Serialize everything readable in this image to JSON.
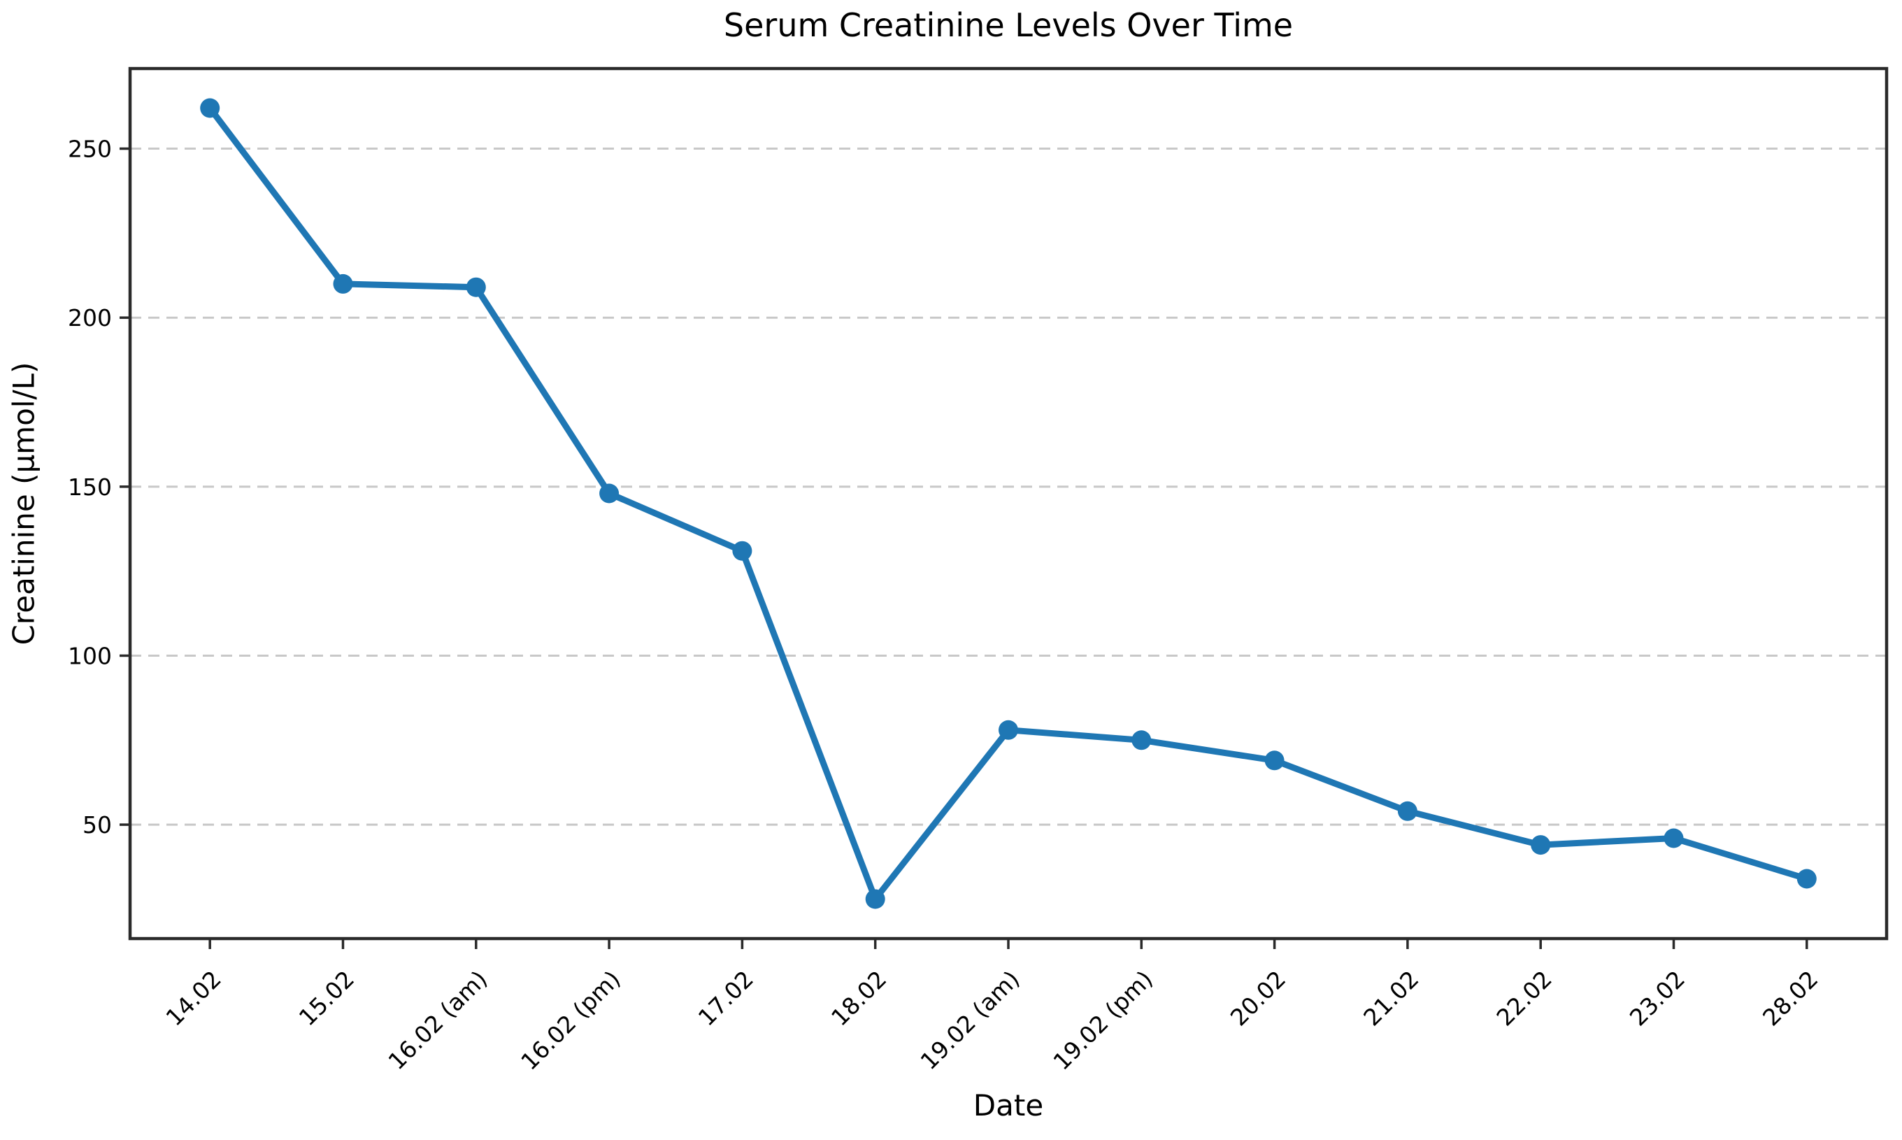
{
  "figure": {
    "background": "#ffffff"
  },
  "chart_data": {
    "type": "line",
    "title": "Serum Creatinine Levels Over Time",
    "xlabel": "Date",
    "ylabel": "Creatinine (μmol/L)",
    "categories": [
      "14.02",
      "15.02",
      "16.02 (am)",
      "16.02 (pm)",
      "17.02",
      "18.02",
      "19.02 (am)",
      "19.02 (pm)",
      "20.02",
      "21.02",
      "22.02",
      "23.02",
      "28.02"
    ],
    "series": [
      {
        "name": "Serum creatinine",
        "values": [
          262,
          210,
          209,
          148,
          131,
          28,
          78,
          75,
          69,
          54,
          44,
          46,
          34
        ]
      }
    ],
    "ylim": [
      16.3,
      273.7
    ],
    "yticks": [
      50,
      100,
      150,
      200,
      250
    ],
    "x_margin": 0.6,
    "grid": {
      "axis": "y",
      "style": "dashed",
      "visible": true
    },
    "legend": "none",
    "x_tick_rotation_deg": 45,
    "marker": "circle",
    "colors": {
      "line": "#1f77b4",
      "marker": "#1f77b4",
      "grid": "#c8c8c8",
      "spine": "#2a2a2a",
      "tick": "#2a2a2a",
      "text": "#000000",
      "background": "#ffffff"
    }
  }
}
